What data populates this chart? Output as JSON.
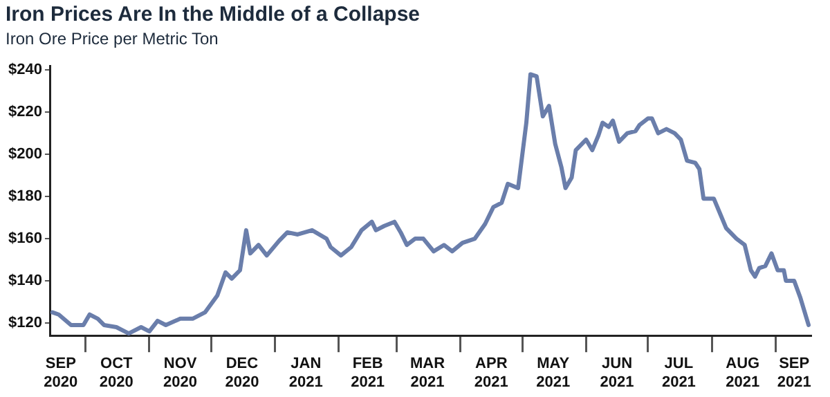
{
  "chart_data": {
    "type": "line",
    "title": "Iron Prices Are In the Middle of a Collapse",
    "subtitle": "Iron Ore Price per Metric Ton",
    "x": [
      "2020-09-15",
      "2020-09-18",
      "2020-09-24",
      "2020-09-30",
      "2020-10-03",
      "2020-10-07",
      "2020-10-10",
      "2020-10-16",
      "2020-10-22",
      "2020-10-28",
      "2020-11-01",
      "2020-11-05",
      "2020-11-09",
      "2020-11-16",
      "2020-11-22",
      "2020-11-28",
      "2020-12-04",
      "2020-12-08",
      "2020-12-11",
      "2020-12-15",
      "2020-12-18",
      "2020-12-20",
      "2020-12-24",
      "2020-12-28",
      "2021-01-03",
      "2021-01-07",
      "2021-01-12",
      "2021-01-19",
      "2021-01-26",
      "2021-01-28",
      "2021-02-02",
      "2021-02-07",
      "2021-02-12",
      "2021-02-17",
      "2021-02-19",
      "2021-02-23",
      "2021-02-28",
      "2021-03-03",
      "2021-03-06",
      "2021-03-10",
      "2021-03-14",
      "2021-03-19",
      "2021-03-24",
      "2021-03-28",
      "2021-04-02",
      "2021-04-08",
      "2021-04-13",
      "2021-04-17",
      "2021-04-21",
      "2021-04-24",
      "2021-04-29",
      "2021-05-03",
      "2021-05-05",
      "2021-05-08",
      "2021-05-11",
      "2021-05-14",
      "2021-05-17",
      "2021-05-20",
      "2021-05-22",
      "2021-05-25",
      "2021-05-27",
      "2021-06-01",
      "2021-06-04",
      "2021-06-07",
      "2021-06-09",
      "2021-06-12",
      "2021-06-14",
      "2021-06-17",
      "2021-06-21",
      "2021-06-25",
      "2021-06-27",
      "2021-07-01",
      "2021-07-03",
      "2021-07-06",
      "2021-07-10",
      "2021-07-14",
      "2021-07-17",
      "2021-07-20",
      "2021-07-24",
      "2021-07-26",
      "2021-07-28",
      "2021-08-02",
      "2021-08-05",
      "2021-08-08",
      "2021-08-13",
      "2021-08-17",
      "2021-08-20",
      "2021-08-22",
      "2021-08-24",
      "2021-08-27",
      "2021-08-30",
      "2021-09-02",
      "2021-09-05",
      "2021-09-06",
      "2021-09-10",
      "2021-09-13",
      "2021-09-17"
    ],
    "series": [
      {
        "color": "#6a7eab",
        "values": [
          125,
          124,
          119,
          119,
          124,
          122,
          119,
          118,
          115,
          118,
          116,
          121,
          119,
          122,
          122,
          125,
          133,
          144,
          141,
          145,
          164,
          153,
          157,
          152,
          159,
          163,
          162,
          164,
          160,
          156,
          152,
          156,
          164,
          168,
          164,
          166,
          168,
          163,
          157,
          160,
          160,
          154,
          157,
          154,
          158,
          160,
          167,
          175,
          177,
          186,
          184,
          215,
          238,
          237,
          218,
          223,
          205,
          194,
          184,
          189,
          202,
          207,
          202,
          209,
          215,
          213,
          216,
          206,
          210,
          211,
          214,
          217,
          217,
          210,
          212,
          210,
          207,
          197,
          196,
          193,
          179,
          179,
          172,
          165,
          160,
          157,
          145,
          142,
          146,
          147,
          153,
          145,
          145,
          140,
          140,
          132,
          119
        ]
      }
    ],
    "xlim": [
      "2020-09-14",
      "2021-09-18"
    ],
    "xticks": [
      {
        "value": "2020-09-19",
        "label": "SEP 2020"
      },
      {
        "value": "2020-10-01",
        "label": null
      },
      {
        "value": "2020-10-16",
        "label": "OCT 2020"
      },
      {
        "value": "2020-11-01",
        "label": null
      },
      {
        "value": "2020-11-16",
        "label": "NOV 2020"
      },
      {
        "value": "2020-12-01",
        "label": null
      },
      {
        "value": "2020-12-16",
        "label": "DEC 2020"
      },
      {
        "value": "2021-01-01",
        "label": null
      },
      {
        "value": "2021-01-16",
        "label": "JAN 2021"
      },
      {
        "value": "2021-02-01",
        "label": null
      },
      {
        "value": "2021-02-15",
        "label": "FEB 2021"
      },
      {
        "value": "2021-03-01",
        "label": null
      },
      {
        "value": "2021-03-16",
        "label": "MAR 2021"
      },
      {
        "value": "2021-04-01",
        "label": null
      },
      {
        "value": "2021-04-16",
        "label": "APR 2021"
      },
      {
        "value": "2021-05-01",
        "label": null
      },
      {
        "value": "2021-05-16",
        "label": "MAY 2021"
      },
      {
        "value": "2021-06-01",
        "label": null
      },
      {
        "value": "2021-06-16",
        "label": "JUN 2021"
      },
      {
        "value": "2021-07-01",
        "label": null
      },
      {
        "value": "2021-07-16",
        "label": "JUL 2021"
      },
      {
        "value": "2021-08-01",
        "label": null
      },
      {
        "value": "2021-08-16",
        "label": "AUG 2021"
      },
      {
        "value": "2021-09-01",
        "label": null
      },
      {
        "value": "2021-09-10",
        "label": "SEP 2021"
      }
    ],
    "ylim": [
      114,
      242
    ],
    "yticks": [
      {
        "value": 120,
        "label": "$120"
      },
      {
        "value": 140,
        "label": "$140"
      },
      {
        "value": 160,
        "label": "$160"
      },
      {
        "value": 180,
        "label": "$180"
      },
      {
        "value": 200,
        "label": "$200"
      },
      {
        "value": 220,
        "label": "$220"
      },
      {
        "value": 240,
        "label": "$240"
      }
    ],
    "grid": false,
    "marker": "none",
    "line_style": "solid"
  }
}
